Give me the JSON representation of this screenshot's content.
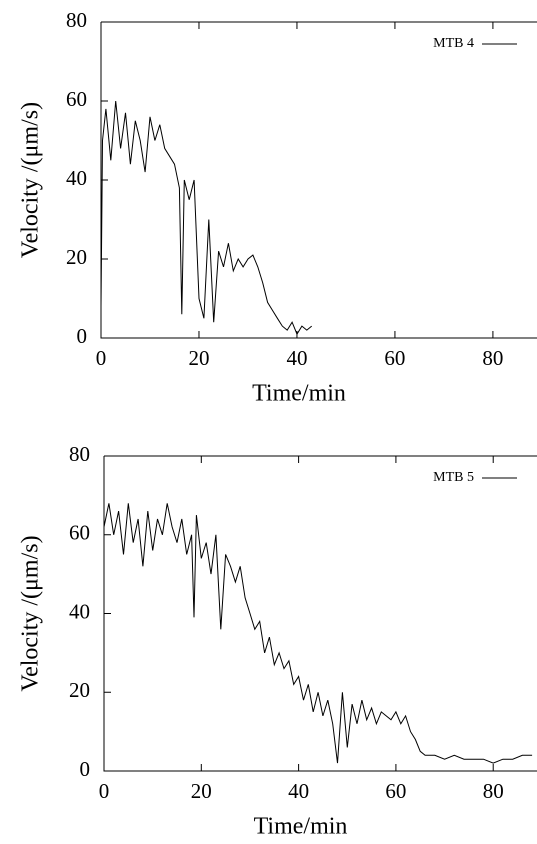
{
  "chart_data": [
    {
      "type": "line",
      "xlabel": "Time/min",
      "ylabel": "Velocity /(μm/s)",
      "x": [
        0,
        0.3,
        1,
        2,
        3,
        4,
        5,
        6,
        7,
        8,
        9,
        10,
        11,
        12,
        13,
        14,
        15,
        16,
        16.5,
        17,
        18,
        19,
        20,
        21,
        22,
        23,
        24,
        25,
        26,
        27,
        28,
        29,
        30,
        31,
        32,
        33,
        34,
        35,
        36,
        37,
        38,
        39,
        40,
        41,
        42,
        43
      ],
      "series": [
        {
          "name": "MTB 4",
          "color": "#000000",
          "values": [
            8,
            50,
            58,
            45,
            60,
            48,
            57,
            44,
            55,
            50,
            42,
            56,
            50,
            54,
            48,
            46,
            44,
            38,
            6,
            40,
            35,
            40,
            10,
            5,
            30,
            4,
            22,
            18,
            24,
            17,
            20,
            18,
            20,
            21,
            18,
            14,
            9,
            7,
            5,
            3,
            2,
            4,
            1,
            3,
            2,
            3
          ]
        }
      ],
      "xlim": [
        0,
        89
      ],
      "ylim": [
        0,
        80
      ],
      "xticks": [
        0,
        20,
        40,
        60,
        80
      ],
      "yticks": [
        0,
        20,
        40,
        60,
        80
      ],
      "legend": "upper right"
    },
    {
      "type": "line",
      "xlabel": "Time/min",
      "ylabel": "Velocity /(μm/s)",
      "x": [
        0,
        1,
        2,
        3,
        4,
        5,
        6,
        7,
        8,
        9,
        10,
        11,
        12,
        13,
        14,
        15,
        16,
        17,
        18,
        18.5,
        19,
        20,
        21,
        22,
        23,
        24,
        25,
        26,
        27,
        28,
        29,
        30,
        31,
        32,
        33,
        34,
        35,
        36,
        37,
        38,
        39,
        40,
        41,
        42,
        43,
        44,
        45,
        46,
        47,
        48,
        49,
        50,
        51,
        52,
        53,
        54,
        55,
        56,
        57,
        58,
        59,
        60,
        61,
        62,
        63,
        64,
        65,
        66,
        67,
        68,
        70,
        72,
        74,
        76,
        78,
        80,
        82,
        84,
        86,
        88
      ],
      "series": [
        {
          "name": "MTB 5",
          "color": "#000000",
          "values": [
            62,
            68,
            60,
            66,
            55,
            68,
            58,
            64,
            52,
            66,
            56,
            64,
            60,
            68,
            62,
            58,
            64,
            55,
            60,
            39,
            65,
            54,
            58,
            50,
            60,
            36,
            55,
            52,
            48,
            52,
            44,
            40,
            36,
            38,
            30,
            34,
            27,
            30,
            26,
            28,
            22,
            24,
            18,
            22,
            15,
            20,
            14,
            18,
            12,
            2,
            20,
            6,
            17,
            12,
            18,
            13,
            16,
            12,
            15,
            14,
            13,
            15,
            12,
            14,
            10,
            8,
            5,
            4,
            4,
            4,
            3,
            4,
            3,
            3,
            3,
            2,
            3,
            3,
            4,
            4
          ]
        }
      ],
      "xlim": [
        0,
        89
      ],
      "ylim": [
        0,
        80
      ],
      "xticks": [
        0,
        20,
        40,
        60,
        80
      ],
      "yticks": [
        0,
        20,
        40,
        60,
        80
      ],
      "legend": "upper right"
    }
  ]
}
